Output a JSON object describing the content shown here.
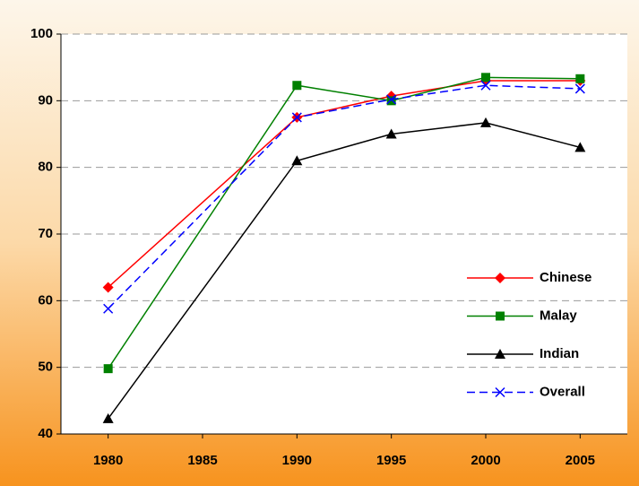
{
  "chart_data": {
    "type": "line",
    "x": [
      1980,
      1990,
      1995,
      2000,
      2005
    ],
    "xlim": [
      1977.5,
      2007.5
    ],
    "xticks": [
      1980,
      1985,
      1990,
      1995,
      2000,
      2005
    ],
    "ylim": [
      40,
      100
    ],
    "yticks": [
      40,
      50,
      60,
      70,
      80,
      90,
      100
    ],
    "grid": true,
    "legend": "right",
    "series": [
      {
        "name": "Chinese",
        "color": "#ff0000",
        "marker": "diamond",
        "dash": false,
        "values": [
          62,
          87.5,
          90.7,
          93,
          93
        ]
      },
      {
        "name": "Malay",
        "color": "#008000",
        "marker": "square",
        "dash": false,
        "values": [
          49.8,
          92.3,
          90,
          93.5,
          93.3
        ]
      },
      {
        "name": "Indian",
        "color": "#000000",
        "marker": "triangle",
        "dash": false,
        "values": [
          42.3,
          81,
          85,
          86.7,
          83
        ]
      },
      {
        "name": "Overall",
        "color": "#0000ff",
        "marker": "x",
        "dash": true,
        "values": [
          58.8,
          87.5,
          90.2,
          92.3,
          91.8
        ]
      }
    ]
  }
}
